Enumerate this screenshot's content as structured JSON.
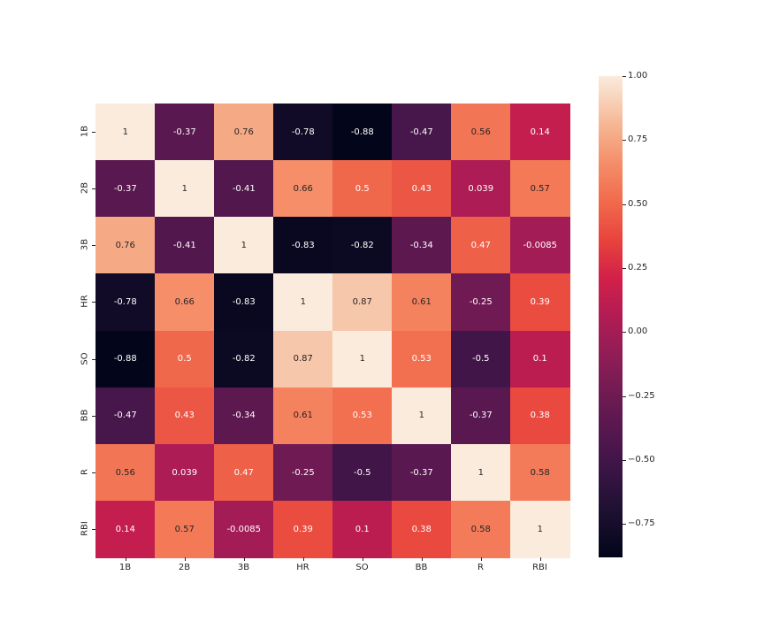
{
  "chart_data": {
    "type": "heatmap",
    "title": "",
    "xlabel": "",
    "ylabel": "",
    "x_labels": [
      "1B",
      "2B",
      "3B",
      "HR",
      "SO",
      "BB",
      "R",
      "RBI"
    ],
    "y_labels": [
      "1B",
      "2B",
      "3B",
      "HR",
      "SO",
      "BB",
      "R",
      "RBI"
    ],
    "values": [
      [
        1,
        -0.37,
        0.76,
        -0.78,
        -0.88,
        -0.47,
        0.56,
        0.14
      ],
      [
        -0.37,
        1,
        -0.41,
        0.66,
        0.5,
        0.43,
        0.039,
        0.57
      ],
      [
        0.76,
        -0.41,
        1,
        -0.83,
        -0.82,
        -0.34,
        0.47,
        -0.0085
      ],
      [
        -0.78,
        0.66,
        -0.83,
        1,
        0.87,
        0.61,
        -0.25,
        0.39
      ],
      [
        -0.88,
        0.5,
        -0.82,
        0.87,
        1,
        0.53,
        -0.5,
        0.1
      ],
      [
        -0.47,
        0.43,
        -0.34,
        0.61,
        0.53,
        1,
        -0.37,
        0.38
      ],
      [
        0.56,
        0.039,
        0.47,
        -0.25,
        -0.5,
        -0.37,
        1,
        0.58
      ],
      [
        0.14,
        0.57,
        -0.0085,
        0.39,
        0.1,
        0.38,
        0.58,
        1
      ]
    ],
    "annotations": [
      [
        "1",
        "-0.37",
        "0.76",
        "-0.78",
        "-0.88",
        "-0.47",
        "0.56",
        "0.14"
      ],
      [
        "-0.37",
        "1",
        "-0.41",
        "0.66",
        "0.5",
        "0.43",
        "0.039",
        "0.57"
      ],
      [
        "0.76",
        "-0.41",
        "1",
        "-0.83",
        "-0.82",
        "-0.34",
        "0.47",
        "-0.0085"
      ],
      [
        "-0.78",
        "0.66",
        "-0.83",
        "1",
        "0.87",
        "0.61",
        "-0.25",
        "0.39"
      ],
      [
        "-0.88",
        "0.5",
        "-0.82",
        "0.87",
        "1",
        "0.53",
        "-0.5",
        "0.1"
      ],
      [
        "-0.47",
        "0.43",
        "-0.34",
        "0.61",
        "0.53",
        "1",
        "-0.37",
        "0.38"
      ],
      [
        "0.56",
        "0.039",
        "0.47",
        "-0.25",
        "-0.5",
        "-0.37",
        "1",
        "0.58"
      ],
      [
        "0.14",
        "0.57",
        "-0.0085",
        "0.39",
        "0.1",
        "0.38",
        "0.58",
        "1"
      ]
    ],
    "colormap": "rocket",
    "vmin": -0.88,
    "vmax": 1.0,
    "colorbar": {
      "ticks": [
        1.0,
        0.75,
        0.5,
        0.25,
        0.0,
        -0.25,
        -0.5,
        -0.75
      ],
      "tick_labels": [
        "1.00",
        "0.75",
        "0.50",
        "0.25",
        "0.00",
        "−0.25",
        "−0.50",
        "−0.75"
      ]
    },
    "grid": false,
    "legend_position": "right (colorbar)"
  }
}
